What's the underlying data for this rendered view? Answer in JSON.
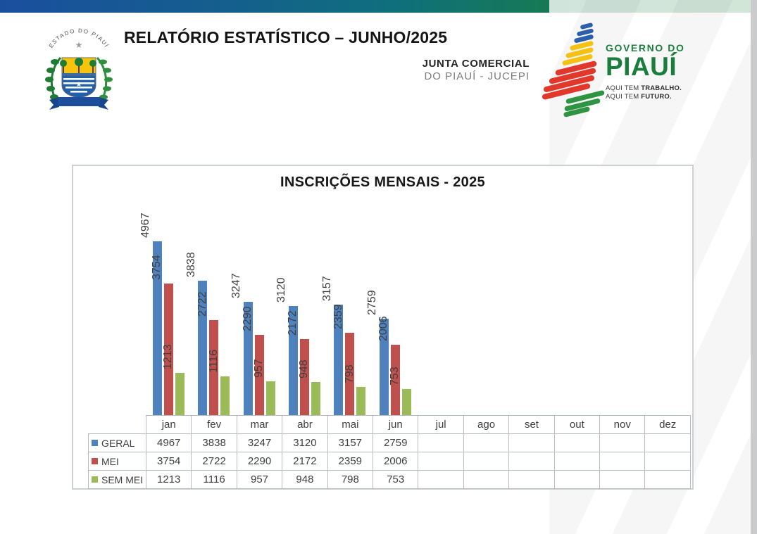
{
  "page": {
    "top_bar_gradient": [
      "#1a4f9e",
      "#0f6f7d",
      "#1f8238"
    ],
    "background": "#ffffff"
  },
  "header": {
    "title": "RELATÓRIO ESTATÍSTICO – JUNHO/2025",
    "coat_of_arms": {
      "top_label": "ESTADO DO PIAUÍ"
    },
    "org": {
      "line1": "JUNTA COMERCIAL",
      "line2": "DO PIAUÍ - JUCEPI"
    },
    "gov_logo": {
      "line1": "GOVERNO DO",
      "line2": "PIAUÍ",
      "tagline1": {
        "prefix": "AQUI TEM ",
        "bold": "TRABALHO."
      },
      "tagline2": {
        "prefix": "AQUI TEM ",
        "bold": "FUTURO."
      },
      "green": "#1b7d3b"
    }
  },
  "chart_data": {
    "type": "bar",
    "title": "INSCRIÇÕES MENSAIS - 2025",
    "categories": [
      "jan",
      "fev",
      "mar",
      "abr",
      "mai",
      "jun",
      "jul",
      "ago",
      "set",
      "out",
      "nov",
      "dez"
    ],
    "series": [
      {
        "name": "GERAL",
        "color": "#4F81BD",
        "values": [
          4967,
          3838,
          3247,
          3120,
          3157,
          2759,
          null,
          null,
          null,
          null,
          null,
          null
        ]
      },
      {
        "name": "MEI",
        "color": "#C0504D",
        "values": [
          3754,
          2722,
          2290,
          2172,
          2359,
          2006,
          null,
          null,
          null,
          null,
          null,
          null
        ]
      },
      {
        "name": "SEM MEI",
        "color": "#9BBB59",
        "values": [
          1213,
          1116,
          957,
          948,
          798,
          753,
          null,
          null,
          null,
          null,
          null,
          null
        ]
      }
    ],
    "ylim": [
      0,
      5200
    ],
    "grid": false,
    "legend_position": "table rows left",
    "value_labels": "rotated 90 above bars"
  }
}
